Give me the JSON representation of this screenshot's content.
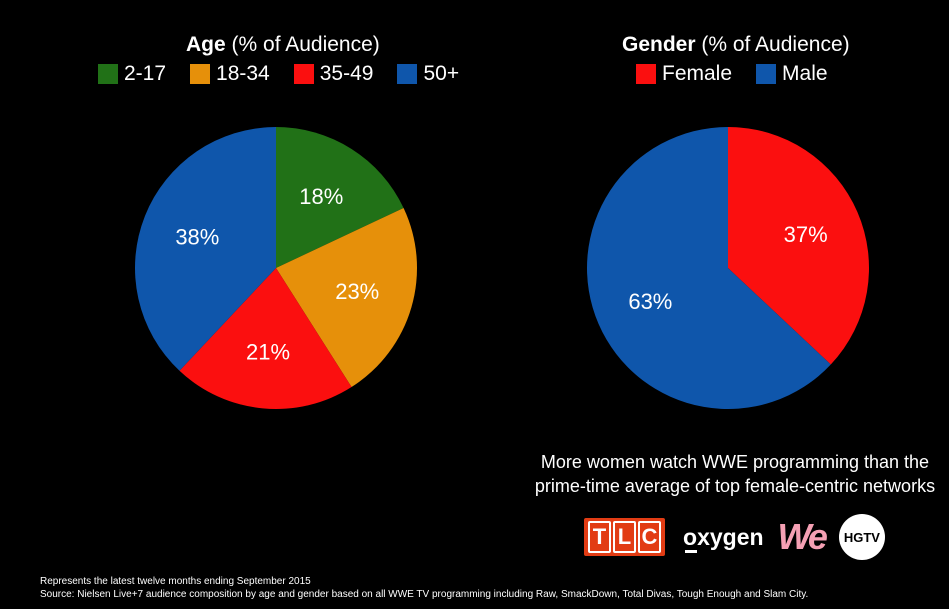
{
  "chart_data": [
    {
      "type": "pie",
      "title_bold": "Age",
      "title_rest": " (% of Audience)",
      "categories": [
        "2-17",
        "18-34",
        "35-49",
        "50+"
      ],
      "values": [
        18,
        23,
        21,
        38
      ],
      "labels": [
        "18%",
        "23%",
        "21%",
        "38%"
      ],
      "colors": [
        "#217117",
        "#e6900a",
        "#fb0f0f",
        "#0f56ab"
      ],
      "legend_position": "top"
    },
    {
      "type": "pie",
      "title_bold": "Gender",
      "title_rest": " (% of Audience)",
      "categories": [
        "Female",
        "Male"
      ],
      "values": [
        37,
        63
      ],
      "labels": [
        "37%",
        "63%"
      ],
      "colors": [
        "#fb0f0f",
        "#0f56ab"
      ],
      "legend_position": "top"
    }
  ],
  "callout": {
    "line1": "More women watch WWE programming than the",
    "line2": "prime-time average of top female-centric networks"
  },
  "logos": {
    "tlc": [
      "T",
      "L",
      "C"
    ],
    "oxygen": "xygen",
    "oxygen_letter": "o",
    "we": "We",
    "hgtv": "HGTV"
  },
  "footnote": {
    "line1": "Represents the latest twelve months ending September 2015",
    "line2": "Source: Nielsen Live+7 audience composition by age and gender based on all WWE TV programming including Raw, SmackDown, Total Divas, Tough Enough and Slam City."
  }
}
